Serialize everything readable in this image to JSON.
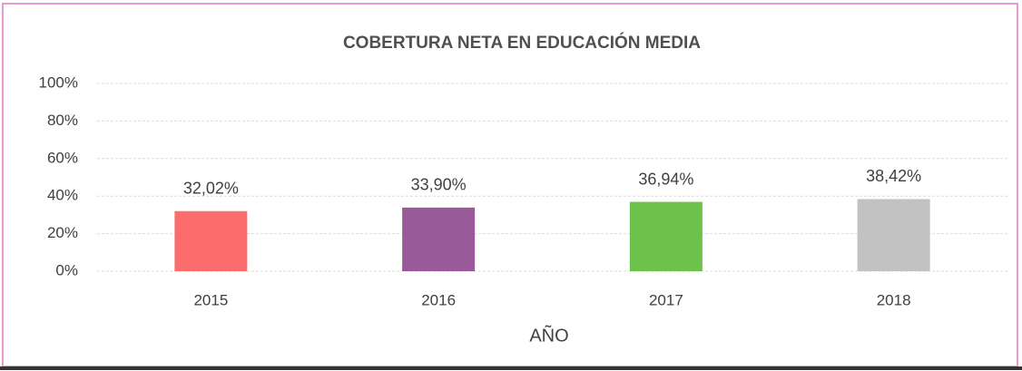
{
  "chart_data": {
    "type": "bar",
    "title": "COBERTURA NETA EN EDUCACIÓN MEDIA",
    "x_label": "AÑO",
    "categories": [
      "2015",
      "2016",
      "2017",
      "2018"
    ],
    "values": [
      32.02,
      33.9,
      36.94,
      38.42
    ],
    "value_labels": [
      "32,02%",
      "33,90%",
      "36,94%",
      "38,42%"
    ],
    "colors": [
      "#fb6d6d",
      "#985a98",
      "#6cc24a",
      "#c2c2c2"
    ],
    "ylim": [
      0,
      100
    ],
    "yticks": [
      {
        "value": 0,
        "label": "0%"
      },
      {
        "value": 20,
        "label": "20%"
      },
      {
        "value": 40,
        "label": "40%"
      },
      {
        "value": 60,
        "label": "60%"
      },
      {
        "value": 80,
        "label": "80%"
      },
      {
        "value": 100,
        "label": "100%"
      }
    ],
    "grid": true
  }
}
